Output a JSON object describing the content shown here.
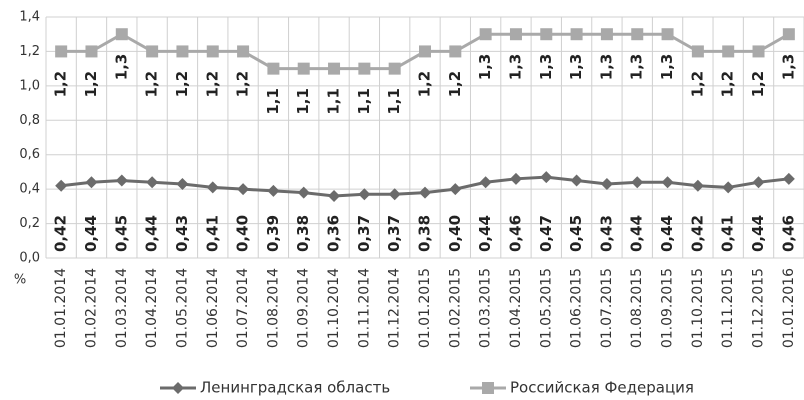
{
  "chart_data": {
    "type": "line",
    "axis_unit": "%",
    "categories": [
      "01.01.2014",
      "01.02.2014",
      "01.03.2014",
      "01.04.2014",
      "01.05.2014",
      "01.06.2014",
      "01.07.2014",
      "01.08.2014",
      "01.09.2014",
      "01.10.2014",
      "01.11.2014",
      "01.12.2014",
      "01.01.2015",
      "01.02.2015",
      "01.03.2015",
      "01.04.2015",
      "01.05.2015",
      "01.06.2015",
      "01.07.2015",
      "01.08.2015",
      "01.09.2015",
      "01.10.2015",
      "01.11.2015",
      "01.12.2015",
      "01.01.2016"
    ],
    "series": [
      {
        "name": "Ленинградская область",
        "color": "#6b6b6b",
        "marker": "diamond",
        "values": [
          0.42,
          0.44,
          0.45,
          0.44,
          0.43,
          0.41,
          0.4,
          0.39,
          0.38,
          0.36,
          0.37,
          0.37,
          0.38,
          0.4,
          0.44,
          0.46,
          0.47,
          0.45,
          0.43,
          0.44,
          0.44,
          0.42,
          0.41,
          0.44,
          0.46
        ],
        "value_labels": [
          "0,42",
          "0,44",
          "0,45",
          "0,44",
          "0,43",
          "0,41",
          "0,40",
          "0,39",
          "0,38",
          "0,36",
          "0,37",
          "0,37",
          "0,38",
          "0,40",
          "0,44",
          "0,46",
          "0,47",
          "0,45",
          "0,43",
          "0,44",
          "0,44",
          "0,42",
          "0,41",
          "0,44",
          "0,46"
        ]
      },
      {
        "name": "Российская Федерация",
        "color": "#a9a9a9",
        "marker": "square",
        "values": [
          1.2,
          1.2,
          1.3,
          1.2,
          1.2,
          1.2,
          1.2,
          1.1,
          1.1,
          1.1,
          1.1,
          1.1,
          1.2,
          1.2,
          1.3,
          1.3,
          1.3,
          1.3,
          1.3,
          1.3,
          1.3,
          1.2,
          1.2,
          1.2,
          1.3
        ],
        "value_labels": [
          "1,2",
          "1,2",
          "1,3",
          "1,2",
          "1,2",
          "1,2",
          "1,2",
          "1,1",
          "1,1",
          "1,1",
          "1,1",
          "1,1",
          "1,2",
          "1,2",
          "1,3",
          "1,3",
          "1,3",
          "1,3",
          "1,3",
          "1,3",
          "1,3",
          "1,2",
          "1,2",
          "1,2",
          "1,3"
        ]
      }
    ],
    "ylim": [
      0,
      1.4
    ],
    "yticks": [
      {
        "value": 0,
        "label": "0,0"
      },
      {
        "value": 0.2,
        "label": "0,2"
      },
      {
        "value": 0.4,
        "label": "0,4"
      },
      {
        "value": 0.6,
        "label": "0,6"
      },
      {
        "value": 0.8,
        "label": "0,8"
      },
      {
        "value": 1.0,
        "label": "1,0"
      },
      {
        "value": 1.2,
        "label": "1,2"
      },
      {
        "value": 1.4,
        "label": "1,4"
      }
    ],
    "grid": true,
    "legend": "bottom"
  }
}
